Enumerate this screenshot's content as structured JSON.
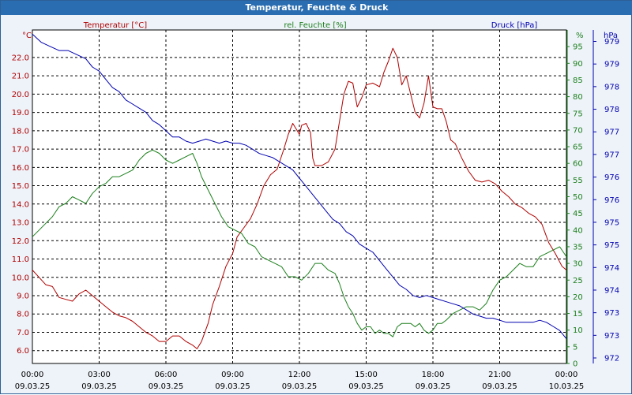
{
  "window": {
    "title": "Temperatur, Feuchte & Druck"
  },
  "chart_data": {
    "type": "line",
    "title": "Temperatur, Feuchte & Druck",
    "colors": {
      "temperature": "#b00000",
      "humidity": "#1c7f1c",
      "pressure": "#0000b0",
      "grid": "#000000"
    },
    "x_ticks": [
      {
        "h": 0,
        "time": "00:00",
        "date": "09.03.25"
      },
      {
        "h": 3,
        "time": "03:00",
        "date": "09.03.25"
      },
      {
        "h": 6,
        "time": "06:00",
        "date": "09.03.25"
      },
      {
        "h": 9,
        "time": "09:00",
        "date": "09.03.25"
      },
      {
        "h": 12,
        "time": "12:00",
        "date": "09.03.25"
      },
      {
        "h": 15,
        "time": "15:00",
        "date": "09.03.25"
      },
      {
        "h": 18,
        "time": "18:00",
        "date": "09.03.25"
      },
      {
        "h": 21,
        "time": "21:00",
        "date": "09.03.25"
      },
      {
        "h": 24,
        "time": "00:00",
        "date": "10.03.25"
      }
    ],
    "xlim": [
      0,
      24
    ],
    "axes": {
      "temperature": {
        "label": "Temperatur [°C]",
        "unit": "°C",
        "range": [
          5.3,
          23.5
        ],
        "ticks": [
          "6.0",
          "7.0",
          "8.0",
          "9.0",
          "10.0",
          "11.0",
          "12.0",
          "13.0",
          "14.0",
          "15.0",
          "16.0",
          "17.0",
          "18.0",
          "19.0",
          "20.0",
          "21.0",
          "22.0"
        ]
      },
      "humidity": {
        "label": "rel. Feuchte [%]",
        "unit": "%",
        "range": [
          0,
          100
        ],
        "ticks": [
          "0",
          "5",
          "10",
          "15",
          "20",
          "25",
          "30",
          "35",
          "40",
          "45",
          "50",
          "55",
          "60",
          "65",
          "70",
          "75",
          "80",
          "85",
          "90",
          "95"
        ]
      },
      "pressure": {
        "label": "Druck [hPa]",
        "unit": "hPa",
        "range": [
          971.7,
          979.8
        ],
        "ticks": [
          "972",
          "973",
          "973",
          "974",
          "974",
          "975",
          "975",
          "976",
          "976",
          "977",
          "977",
          "978",
          "978",
          "979",
          "979"
        ]
      }
    },
    "series": [
      {
        "name": "Temperatur",
        "axis": "temperature",
        "points": [
          [
            0,
            10.4
          ],
          [
            0.3,
            10.0
          ],
          [
            0.6,
            9.6
          ],
          [
            0.9,
            9.5
          ],
          [
            1.2,
            8.9
          ],
          [
            1.5,
            8.8
          ],
          [
            1.8,
            8.7
          ],
          [
            2.1,
            9.1
          ],
          [
            2.4,
            9.3
          ],
          [
            2.7,
            9.0
          ],
          [
            3.0,
            8.7
          ],
          [
            3.3,
            8.4
          ],
          [
            3.6,
            8.1
          ],
          [
            3.9,
            7.9
          ],
          [
            4.2,
            7.8
          ],
          [
            4.5,
            7.6
          ],
          [
            4.8,
            7.3
          ],
          [
            5.1,
            7.0
          ],
          [
            5.4,
            6.8
          ],
          [
            5.7,
            6.5
          ],
          [
            6.0,
            6.5
          ],
          [
            6.3,
            6.8
          ],
          [
            6.6,
            6.8
          ],
          [
            6.9,
            6.5
          ],
          [
            7.2,
            6.3
          ],
          [
            7.4,
            6.1
          ],
          [
            7.6,
            6.5
          ],
          [
            7.9,
            7.5
          ],
          [
            8.1,
            8.5
          ],
          [
            8.4,
            9.5
          ],
          [
            8.7,
            10.6
          ],
          [
            9.0,
            11.3
          ],
          [
            9.2,
            12.2
          ],
          [
            9.5,
            12.7
          ],
          [
            9.8,
            13.2
          ],
          [
            10.1,
            14.0
          ],
          [
            10.4,
            15.0
          ],
          [
            10.7,
            15.6
          ],
          [
            11.0,
            15.9
          ],
          [
            11.3,
            17.0
          ],
          [
            11.5,
            17.8
          ],
          [
            11.7,
            18.4
          ],
          [
            11.9,
            18.0
          ],
          [
            12.0,
            17.8
          ],
          [
            12.1,
            18.3
          ],
          [
            12.3,
            18.4
          ],
          [
            12.5,
            17.9
          ],
          [
            12.6,
            16.5
          ],
          [
            12.7,
            16.1
          ],
          [
            13.0,
            16.1
          ],
          [
            13.3,
            16.3
          ],
          [
            13.6,
            17.0
          ],
          [
            13.8,
            18.5
          ],
          [
            14.0,
            20.0
          ],
          [
            14.2,
            20.7
          ],
          [
            14.4,
            20.6
          ],
          [
            14.6,
            19.3
          ],
          [
            14.8,
            19.8
          ],
          [
            15.0,
            20.5
          ],
          [
            15.3,
            20.6
          ],
          [
            15.6,
            20.4
          ],
          [
            15.8,
            21.2
          ],
          [
            16.0,
            21.8
          ],
          [
            16.2,
            22.5
          ],
          [
            16.4,
            22.0
          ],
          [
            16.6,
            20.5
          ],
          [
            16.8,
            21.0
          ],
          [
            17.0,
            20.0
          ],
          [
            17.2,
            19.0
          ],
          [
            17.4,
            18.7
          ],
          [
            17.6,
            19.5
          ],
          [
            17.8,
            21.0
          ],
          [
            18.0,
            19.3
          ],
          [
            18.2,
            19.2
          ],
          [
            18.4,
            19.2
          ],
          [
            18.6,
            18.5
          ],
          [
            18.8,
            17.5
          ],
          [
            19.0,
            17.3
          ],
          [
            19.3,
            16.5
          ],
          [
            19.6,
            15.8
          ],
          [
            19.9,
            15.3
          ],
          [
            20.2,
            15.2
          ],
          [
            20.5,
            15.3
          ],
          [
            20.8,
            15.1
          ],
          [
            21.1,
            14.7
          ],
          [
            21.4,
            14.4
          ],
          [
            21.7,
            14.0
          ],
          [
            22.0,
            13.8
          ],
          [
            22.3,
            13.5
          ],
          [
            22.6,
            13.3
          ],
          [
            22.9,
            12.9
          ],
          [
            23.2,
            11.9
          ],
          [
            23.5,
            11.3
          ],
          [
            23.8,
            10.6
          ],
          [
            24.0,
            10.4
          ]
        ]
      },
      {
        "name": "rel. Feuchte",
        "axis": "humidity",
        "points": [
          [
            0,
            38
          ],
          [
            0.3,
            40
          ],
          [
            0.6,
            42
          ],
          [
            0.9,
            44
          ],
          [
            1.2,
            47
          ],
          [
            1.5,
            48
          ],
          [
            1.8,
            50
          ],
          [
            2.1,
            49
          ],
          [
            2.4,
            48
          ],
          [
            2.7,
            51
          ],
          [
            3.0,
            53
          ],
          [
            3.3,
            54
          ],
          [
            3.6,
            56
          ],
          [
            3.9,
            56
          ],
          [
            4.2,
            57
          ],
          [
            4.5,
            58
          ],
          [
            4.8,
            61
          ],
          [
            5.1,
            63
          ],
          [
            5.4,
            64
          ],
          [
            5.7,
            63
          ],
          [
            6.0,
            61
          ],
          [
            6.3,
            60
          ],
          [
            6.6,
            61
          ],
          [
            6.9,
            62
          ],
          [
            7.2,
            63
          ],
          [
            7.4,
            60
          ],
          [
            7.6,
            56
          ],
          [
            7.9,
            52
          ],
          [
            8.2,
            48
          ],
          [
            8.5,
            44
          ],
          [
            8.8,
            41
          ],
          [
            9.1,
            40
          ],
          [
            9.4,
            39
          ],
          [
            9.7,
            36
          ],
          [
            10.0,
            35
          ],
          [
            10.3,
            32
          ],
          [
            10.6,
            31
          ],
          [
            10.9,
            30
          ],
          [
            11.2,
            29
          ],
          [
            11.5,
            26
          ],
          [
            11.8,
            26
          ],
          [
            12.1,
            25
          ],
          [
            12.4,
            27
          ],
          [
            12.7,
            30
          ],
          [
            13.0,
            30
          ],
          [
            13.3,
            28
          ],
          [
            13.6,
            27
          ],
          [
            13.8,
            24
          ],
          [
            14.0,
            20
          ],
          [
            14.2,
            17
          ],
          [
            14.4,
            15
          ],
          [
            14.6,
            12
          ],
          [
            14.8,
            10
          ],
          [
            15.0,
            11
          ],
          [
            15.2,
            11
          ],
          [
            15.4,
            9
          ],
          [
            15.6,
            10
          ],
          [
            15.8,
            9
          ],
          [
            16.0,
            9
          ],
          [
            16.2,
            8
          ],
          [
            16.4,
            11
          ],
          [
            16.6,
            12
          ],
          [
            16.8,
            12
          ],
          [
            17.0,
            12
          ],
          [
            17.2,
            11
          ],
          [
            17.4,
            12
          ],
          [
            17.6,
            10
          ],
          [
            17.8,
            9
          ],
          [
            18.0,
            10
          ],
          [
            18.2,
            12
          ],
          [
            18.4,
            12
          ],
          [
            18.6,
            13
          ],
          [
            18.9,
            15
          ],
          [
            19.2,
            16
          ],
          [
            19.5,
            17
          ],
          [
            19.8,
            17
          ],
          [
            20.1,
            16
          ],
          [
            20.4,
            18
          ],
          [
            20.7,
            22
          ],
          [
            21.0,
            25
          ],
          [
            21.3,
            26
          ],
          [
            21.6,
            28
          ],
          [
            21.9,
            30
          ],
          [
            22.2,
            29
          ],
          [
            22.5,
            29
          ],
          [
            22.8,
            32
          ],
          [
            23.1,
            33
          ],
          [
            23.4,
            34
          ],
          [
            23.7,
            35
          ],
          [
            24.0,
            32
          ]
        ]
      },
      {
        "name": "Druck",
        "axis": "pressure",
        "points": [
          [
            0,
            979.7
          ],
          [
            0.4,
            979.5
          ],
          [
            0.8,
            979.4
          ],
          [
            1.2,
            979.3
          ],
          [
            1.6,
            979.3
          ],
          [
            2.0,
            979.2
          ],
          [
            2.4,
            979.1
          ],
          [
            2.7,
            978.9
          ],
          [
            3.0,
            978.8
          ],
          [
            3.3,
            978.6
          ],
          [
            3.6,
            978.4
          ],
          [
            3.9,
            978.3
          ],
          [
            4.2,
            978.1
          ],
          [
            4.5,
            978.0
          ],
          [
            4.8,
            977.9
          ],
          [
            5.1,
            977.8
          ],
          [
            5.4,
            977.6
          ],
          [
            5.7,
            977.5
          ],
          [
            6.0,
            977.35
          ],
          [
            6.3,
            977.2
          ],
          [
            6.6,
            977.2
          ],
          [
            6.9,
            977.1
          ],
          [
            7.2,
            977.05
          ],
          [
            7.5,
            977.1
          ],
          [
            7.8,
            977.15
          ],
          [
            8.1,
            977.1
          ],
          [
            8.4,
            977.05
          ],
          [
            8.7,
            977.1
          ],
          [
            9.0,
            977.05
          ],
          [
            9.3,
            977.05
          ],
          [
            9.6,
            977.0
          ],
          [
            9.9,
            976.9
          ],
          [
            10.2,
            976.8
          ],
          [
            10.5,
            976.75
          ],
          [
            10.8,
            976.7
          ],
          [
            11.1,
            976.6
          ],
          [
            11.4,
            976.5
          ],
          [
            11.7,
            976.4
          ],
          [
            12.0,
            976.2
          ],
          [
            12.3,
            976.0
          ],
          [
            12.6,
            975.8
          ],
          [
            12.9,
            975.6
          ],
          [
            13.2,
            975.4
          ],
          [
            13.5,
            975.2
          ],
          [
            13.8,
            975.1
          ],
          [
            14.1,
            974.9
          ],
          [
            14.4,
            974.8
          ],
          [
            14.7,
            974.6
          ],
          [
            15.0,
            974.5
          ],
          [
            15.3,
            974.4
          ],
          [
            15.6,
            974.2
          ],
          [
            15.9,
            974.0
          ],
          [
            16.2,
            973.8
          ],
          [
            16.5,
            973.6
          ],
          [
            16.8,
            973.5
          ],
          [
            17.1,
            973.35
          ],
          [
            17.4,
            973.3
          ],
          [
            17.7,
            973.35
          ],
          [
            18.0,
            973.3
          ],
          [
            18.3,
            973.25
          ],
          [
            18.6,
            973.2
          ],
          [
            18.9,
            973.15
          ],
          [
            19.2,
            973.1
          ],
          [
            19.5,
            973.0
          ],
          [
            19.8,
            972.9
          ],
          [
            20.1,
            972.85
          ],
          [
            20.4,
            972.8
          ],
          [
            20.7,
            972.8
          ],
          [
            21.0,
            972.75
          ],
          [
            21.3,
            972.7
          ],
          [
            21.6,
            972.7
          ],
          [
            21.9,
            972.7
          ],
          [
            22.2,
            972.7
          ],
          [
            22.5,
            972.7
          ],
          [
            22.8,
            972.75
          ],
          [
            23.1,
            972.7
          ],
          [
            23.4,
            972.6
          ],
          [
            23.7,
            972.5
          ],
          [
            24.0,
            972.3
          ]
        ]
      }
    ]
  }
}
